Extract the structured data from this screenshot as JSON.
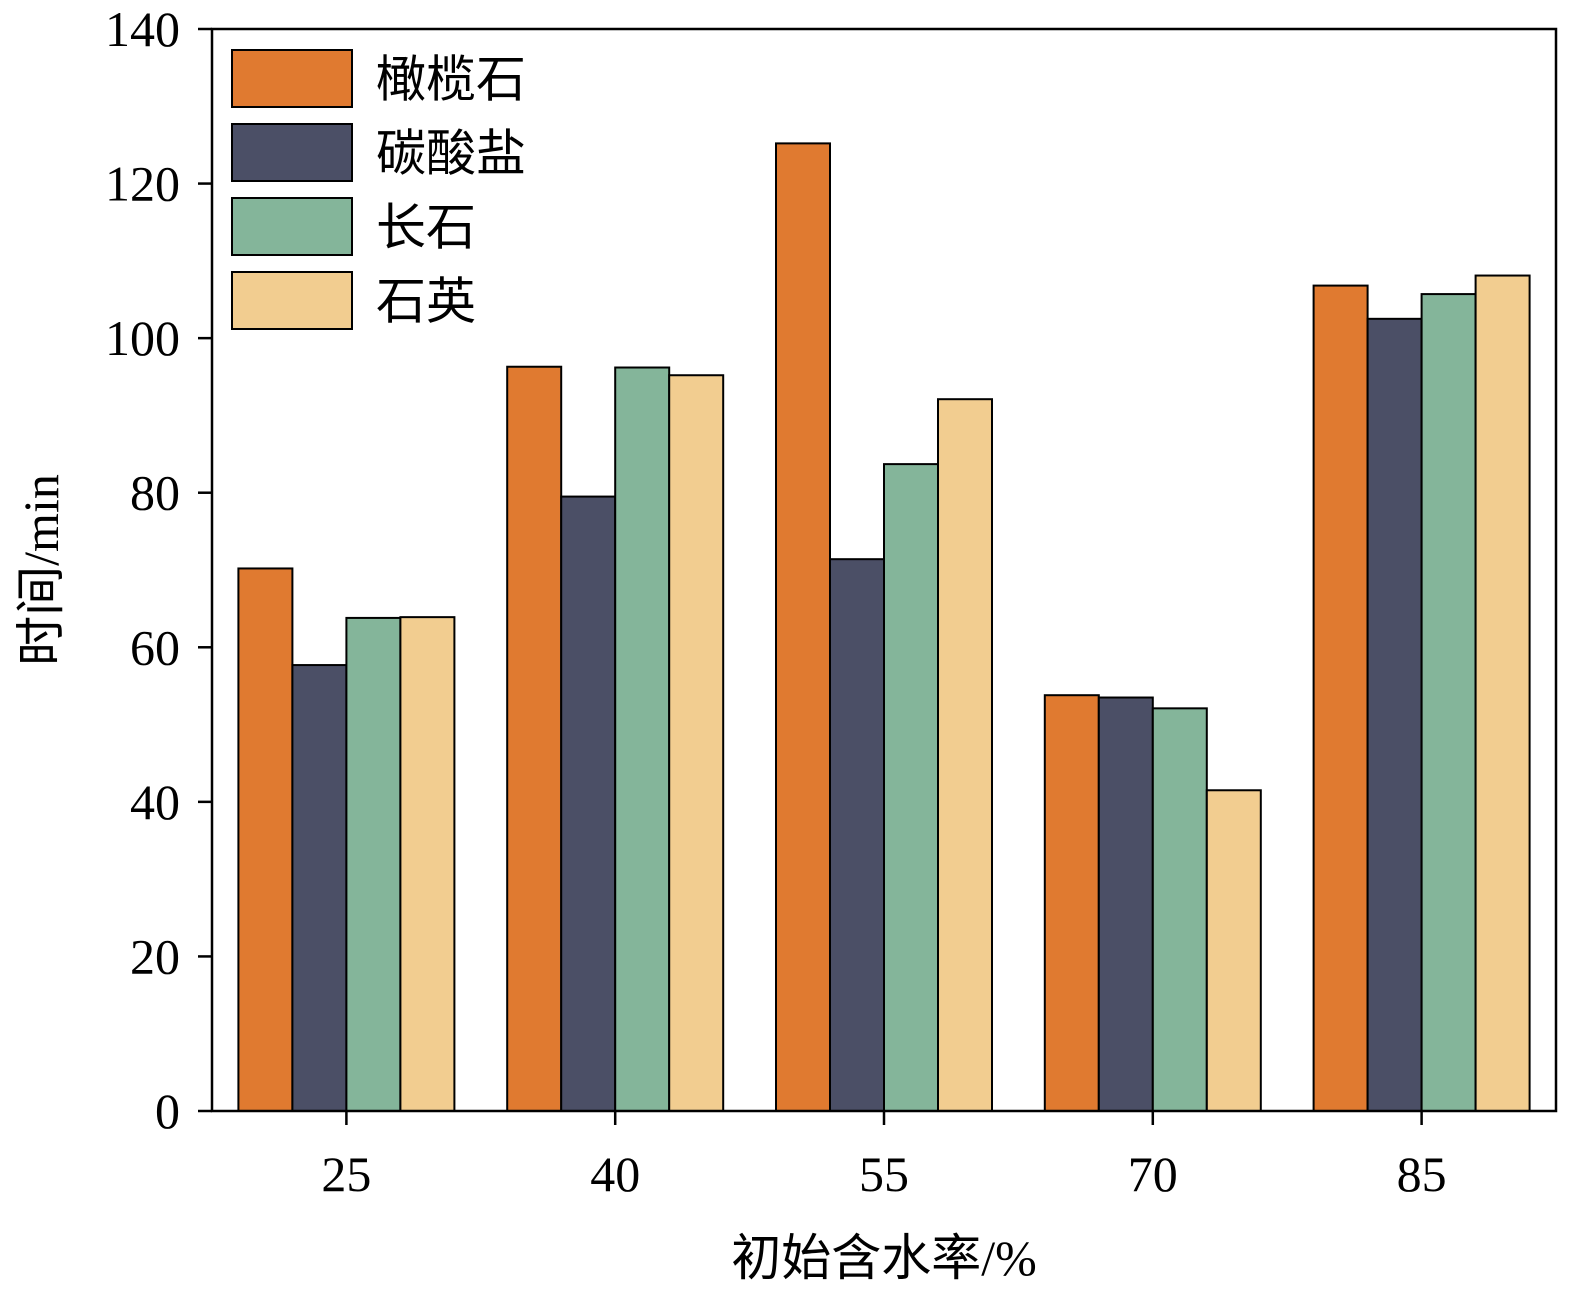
{
  "chart_data": {
    "type": "bar",
    "title": "",
    "xlabel": "初始含水率/%",
    "ylabel": "时间/min",
    "categories": [
      "25",
      "40",
      "55",
      "70",
      "85"
    ],
    "ylim": [
      0,
      140
    ],
    "yticks": [
      "0",
      "20",
      "40",
      "60",
      "80",
      "100",
      "120",
      "140"
    ],
    "grid": false,
    "legend_position": "top-left",
    "series": [
      {
        "name": "橄榄石",
        "color": "#E07A30",
        "values": [
          70.2,
          96.3,
          125.2,
          53.8,
          106.8
        ]
      },
      {
        "name": "碳酸盐",
        "color": "#4B4F66",
        "values": [
          57.7,
          79.5,
          71.4,
          53.5,
          102.5
        ]
      },
      {
        "name": "长石",
        "color": "#84B59A",
        "values": [
          63.8,
          96.2,
          83.7,
          52.1,
          105.7
        ]
      },
      {
        "name": "石英",
        "color": "#F2CD90",
        "values": [
          63.9,
          95.2,
          92.1,
          41.5,
          108.1
        ]
      }
    ]
  }
}
